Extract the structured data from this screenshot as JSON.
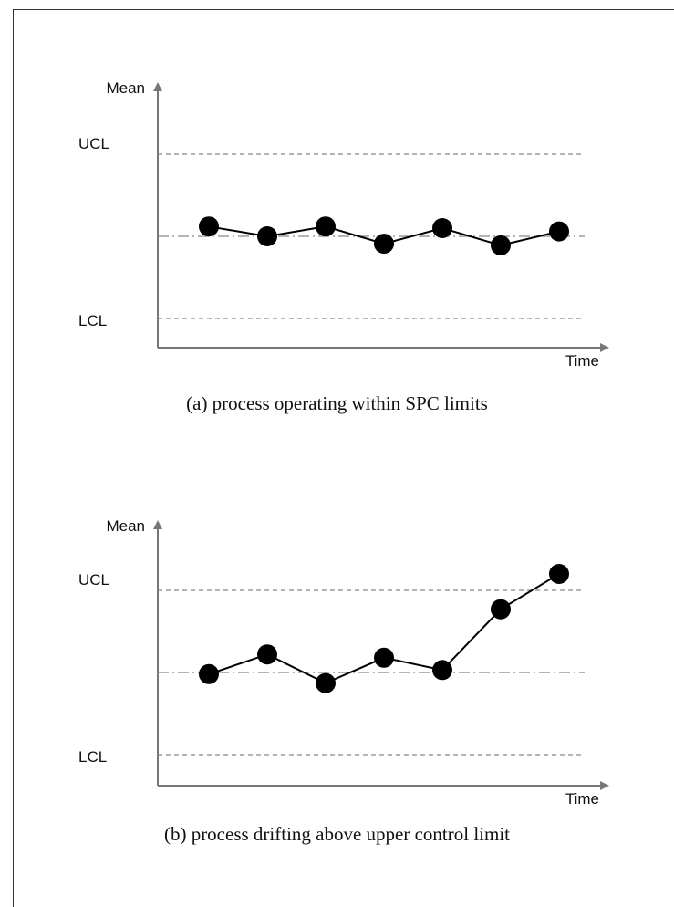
{
  "chart_data": [
    {
      "type": "line",
      "caption": "(a) process operating within SPC limits",
      "ylabel": "Mean",
      "xlabel": "Time",
      "limits": {
        "ucl_label": "UCL",
        "lcl_label": "LCL",
        "ucl": 1.0,
        "center": 0.0,
        "lcl": -1.0
      },
      "x": [
        1,
        2,
        3,
        4,
        5,
        6,
        7
      ],
      "values": [
        0.12,
        0.0,
        0.12,
        -0.09,
        0.1,
        -0.11,
        0.06
      ],
      "ylim": [
        -1.35,
        1.95
      ]
    },
    {
      "type": "line",
      "caption": "(b) process drifting above upper control limit",
      "ylabel": "Mean",
      "xlabel": "Time",
      "limits": {
        "ucl_label": "UCL",
        "lcl_label": "LCL",
        "ucl": 1.0,
        "center": 0.0,
        "lcl": -1.0
      },
      "x": [
        1,
        2,
        3,
        4,
        5,
        6,
        7
      ],
      "values": [
        -0.02,
        0.22,
        -0.13,
        0.18,
        0.03,
        0.77,
        1.2
      ],
      "ylim": [
        -1.35,
        1.95
      ]
    }
  ]
}
